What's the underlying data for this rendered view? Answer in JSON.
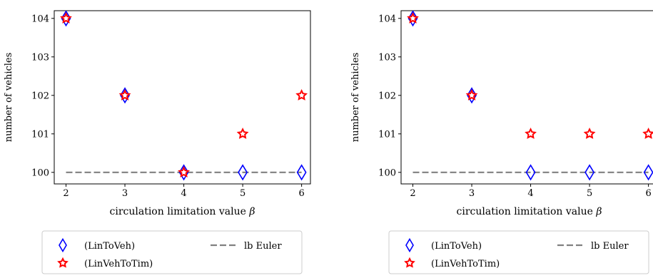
{
  "chart_data": [
    {
      "type": "scatter",
      "xlabel": "circulation limitation value β",
      "ylabel": "number of vehicles",
      "x": [
        2,
        3,
        4,
        5,
        6
      ],
      "xlim": [
        1.8,
        6.15
      ],
      "ylim": [
        99.7,
        104.2
      ],
      "xticks": [
        2,
        3,
        4,
        5,
        6
      ],
      "yticks": [
        100,
        101,
        102,
        103,
        104
      ],
      "grid": false,
      "legend_position": "below",
      "series": [
        {
          "name": "(LinToVeh)",
          "marker": "diamond",
          "color": "#0000ff",
          "values": [
            104,
            102,
            100,
            100,
            100
          ]
        },
        {
          "name": "(LinVehToTim)",
          "marker": "star",
          "color": "#ff0000",
          "values": [
            104,
            102,
            100,
            101,
            102
          ]
        },
        {
          "name": "lb Euler",
          "marker": "dashed-line",
          "color": "#808080",
          "constant": 100
        }
      ]
    },
    {
      "type": "scatter",
      "xlabel": "circulation limitation value β",
      "ylabel": "number of vehicles",
      "x": [
        2,
        3,
        4,
        5,
        6
      ],
      "xlim": [
        1.8,
        6.15
      ],
      "ylim": [
        99.7,
        104.2
      ],
      "xticks": [
        2,
        3,
        4,
        5,
        6
      ],
      "yticks": [
        100,
        101,
        102,
        103,
        104
      ],
      "grid": false,
      "legend_position": "below",
      "series": [
        {
          "name": "(LinToVeh)",
          "marker": "diamond",
          "color": "#0000ff",
          "values": [
            104,
            102,
            100,
            100,
            100
          ]
        },
        {
          "name": "(LinVehToTim)",
          "marker": "star",
          "color": "#ff0000",
          "values": [
            104,
            102,
            101,
            101,
            101
          ]
        },
        {
          "name": "lb Euler",
          "marker": "dashed-line",
          "color": "#808080",
          "constant": 100
        }
      ]
    }
  ]
}
